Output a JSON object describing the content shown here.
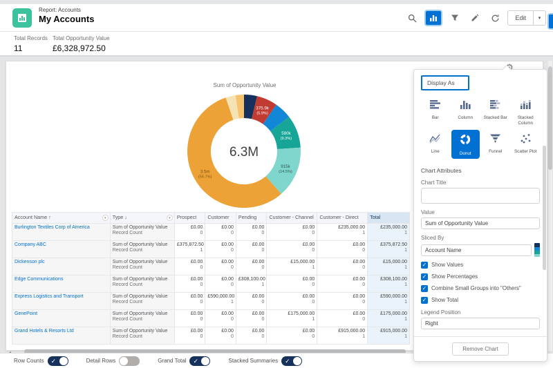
{
  "colors": {
    "accent": "#0070d2",
    "report_icon": "#3cc39e",
    "toggle_on": "#16325c",
    "total_col_bg": "#eaf3fb"
  },
  "header": {
    "context": "Report: Accounts",
    "title": "My Accounts",
    "toolbar_icons": [
      "search",
      "chart",
      "filter",
      "pencil",
      "refresh"
    ],
    "edit_label": "Edit"
  },
  "summary": {
    "records_label": "Total Records",
    "records_value": "11",
    "value_label": "Total Opportunity Value",
    "value_total": "£6,328,972.50"
  },
  "chart_data": {
    "type": "pie",
    "variant": "donut",
    "title": "Sum of Opportunity Value",
    "center_total": "6.3M",
    "legend": "none",
    "segments": [
      {
        "pct": 3.7,
        "color": "#16325c",
        "value_label": "",
        "pct_label": "",
        "text_color": "#ffffff"
      },
      {
        "pct": 5.9,
        "color": "#c23b33",
        "value_label": "375.9k",
        "pct_label": "(5.9%)",
        "text_color": "#ffffff"
      },
      {
        "pct": 4.9,
        "color": "#1287d7",
        "value_label": "",
        "pct_label": "",
        "text_color": "#ffffff"
      },
      {
        "pct": 9.3,
        "color": "#16a596",
        "value_label": "590k",
        "pct_label": "(9.3%)",
        "text_color": "#ffffff"
      },
      {
        "pct": 14.5,
        "color": "#7fd6cc",
        "value_label": "915k",
        "pct_label": "(14.5%)",
        "text_color": "#2d5550"
      },
      {
        "pct": 55.7,
        "color": "#eca236",
        "value_label": "3.5m",
        "pct_label": "(55.7%)",
        "text_color": "#7a5410"
      },
      {
        "pct": 2.8,
        "color": "#f5e3b4",
        "value_label": "",
        "pct_label": "",
        "text_color": "#3e3e3c"
      },
      {
        "pct": 2.4,
        "color": "#f6c46e",
        "value_label": "",
        "pct_label": "",
        "text_color": "#3e3e3c"
      }
    ]
  },
  "table": {
    "columns": [
      "Account Name",
      "Type",
      "Prospect",
      "Customer",
      "Pending",
      "Customer - Channel",
      "Customer - Direct",
      "Total"
    ],
    "sort_account": "↑",
    "sort_type": "↓",
    "measure_labels": [
      "Sum of Opportunity Value",
      "Record Count"
    ],
    "rows": [
      {
        "account": "Burlington Textiles Corp of America",
        "cells": [
          [
            "£0.00",
            "0"
          ],
          [
            "£0.00",
            "0"
          ],
          [
            "£0.00",
            "0"
          ],
          [
            "£0.00",
            "0"
          ],
          [
            "£235,000.00",
            "1"
          ],
          [
            "£235,000.00",
            "1"
          ]
        ]
      },
      {
        "account": "Company ABC",
        "cells": [
          [
            "£375,872.50",
            "1"
          ],
          [
            "£0.00",
            "0"
          ],
          [
            "£0.00",
            "0"
          ],
          [
            "£0.00",
            "0"
          ],
          [
            "£0.00",
            "0"
          ],
          [
            "£375,872.50",
            "1"
          ]
        ]
      },
      {
        "account": "Dickenson plc",
        "cells": [
          [
            "£0.00",
            "0"
          ],
          [
            "£0.00",
            "0"
          ],
          [
            "£0.00",
            "0"
          ],
          [
            "£15,000.00",
            "1"
          ],
          [
            "£0.00",
            "0"
          ],
          [
            "£15,000.00",
            "1"
          ]
        ]
      },
      {
        "account": "Edge Communications",
        "cells": [
          [
            "£0.00",
            "0"
          ],
          [
            "£0.00",
            "0"
          ],
          [
            "£308,100.00",
            "1"
          ],
          [
            "£0.00",
            "0"
          ],
          [
            "£0.00",
            "0"
          ],
          [
            "£308,100.00",
            "1"
          ]
        ]
      },
      {
        "account": "Express Logistics and Transport",
        "cells": [
          [
            "£0.00",
            "0"
          ],
          [
            "£590,000.00",
            "1"
          ],
          [
            "£0.00",
            "0"
          ],
          [
            "£0.00",
            "0"
          ],
          [
            "£0.00",
            "0"
          ],
          [
            "£590,000.00",
            "1"
          ]
        ]
      },
      {
        "account": "GenePoint",
        "cells": [
          [
            "£0.00",
            "0"
          ],
          [
            "£0.00",
            "0"
          ],
          [
            "£0.00",
            "0"
          ],
          [
            "£175,000.00",
            "1"
          ],
          [
            "£0.00",
            "0"
          ],
          [
            "£175,000.00",
            "1"
          ]
        ]
      },
      {
        "account": "Grand Hotels & Resorts Ltd",
        "cells": [
          [
            "£0.00",
            "0"
          ],
          [
            "£0.00",
            "0"
          ],
          [
            "£0.00",
            "0"
          ],
          [
            "£0.00",
            "0"
          ],
          [
            "£915,000.00",
            "1"
          ],
          [
            "£915,000.00",
            "1"
          ]
        ]
      }
    ]
  },
  "panel": {
    "display_as": "Display As",
    "chart_types": [
      {
        "key": "bar",
        "label": "Bar",
        "selected": false
      },
      {
        "key": "column",
        "label": "Column",
        "selected": false
      },
      {
        "key": "stacked-bar",
        "label": "Stacked Bar",
        "selected": false
      },
      {
        "key": "stacked-column",
        "label": "Stacked Column",
        "selected": false
      },
      {
        "key": "line",
        "label": "Line",
        "selected": false
      },
      {
        "key": "donut",
        "label": "Donut",
        "selected": true
      },
      {
        "key": "funnel",
        "label": "Funnel",
        "selected": false
      },
      {
        "key": "scatter",
        "label": "Scatter Plot",
        "selected": false
      }
    ],
    "attributes_heading": "Chart Attributes",
    "chart_title_label": "Chart Title",
    "chart_title_value": "",
    "value_label": "Value",
    "value_input": "Sum of Opportunity Value",
    "sliced_by_label": "Sliced By",
    "sliced_by_value": "Account Name",
    "checkboxes": [
      {
        "label": "Show Values",
        "checked": true
      },
      {
        "label": "Show Percentages",
        "checked": true
      },
      {
        "label": "Combine Small Groups into \"Others\"",
        "checked": true
      },
      {
        "label": "Show Total",
        "checked": true
      }
    ],
    "legend_label": "Legend Position",
    "legend_value": "Right",
    "remove_button": "Remove Chart"
  },
  "footer": {
    "toggles": [
      {
        "label": "Row Counts",
        "on": true
      },
      {
        "label": "Detail Rows",
        "on": false
      },
      {
        "label": "Grand Total",
        "on": true
      },
      {
        "label": "Stacked Summaries",
        "on": true
      }
    ]
  }
}
